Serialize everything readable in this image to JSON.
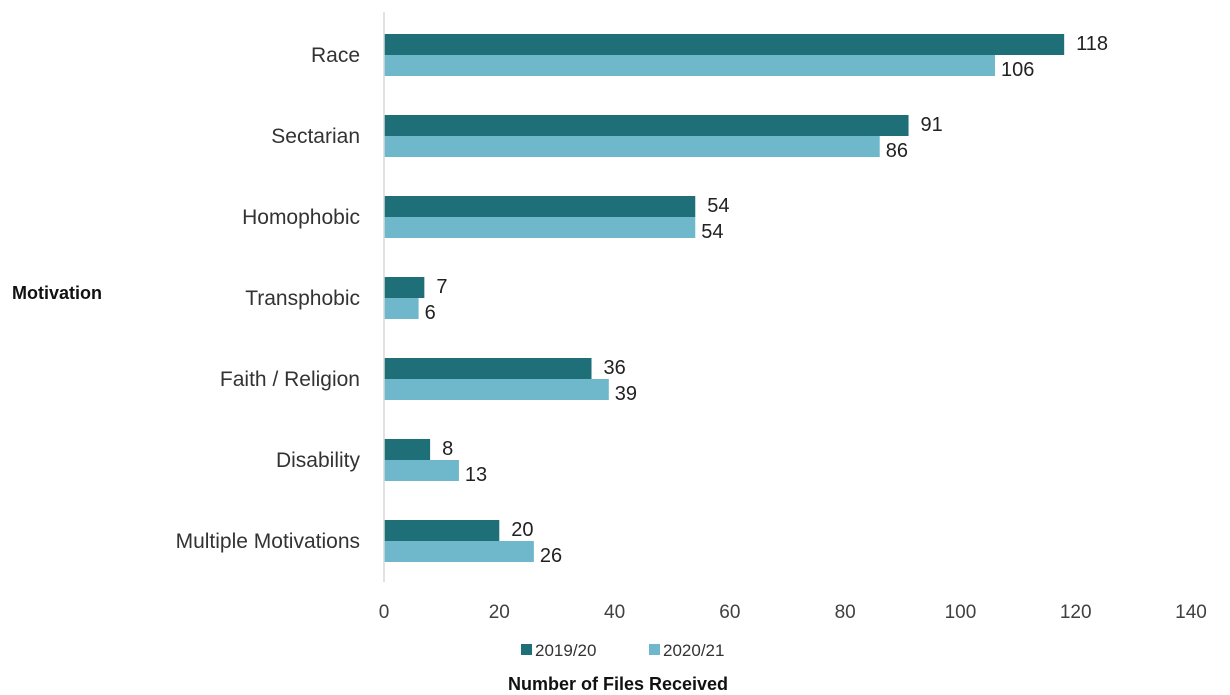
{
  "chart_data": {
    "type": "bar",
    "orientation": "horizontal",
    "categories": [
      "Race",
      "Sectarian",
      "Homophobic",
      "Transphobic",
      "Faith / Religion",
      "Disability",
      "Multiple Motivations"
    ],
    "series": [
      {
        "name": "2019/20",
        "color": "#1f6f78",
        "values": [
          118,
          91,
          54,
          7,
          36,
          8,
          20
        ]
      },
      {
        "name": "2020/21",
        "color": "#6fb8cc",
        "values": [
          106,
          86,
          54,
          6,
          39,
          13,
          26
        ]
      }
    ],
    "xlabel": "Number of Files Received",
    "ylabel": "Motivation",
    "xlim": [
      0,
      140
    ],
    "xticks": [
      0,
      20,
      40,
      60,
      80,
      100,
      120,
      140
    ],
    "grid": false,
    "legend": "bottom",
    "data_labels": true
  }
}
